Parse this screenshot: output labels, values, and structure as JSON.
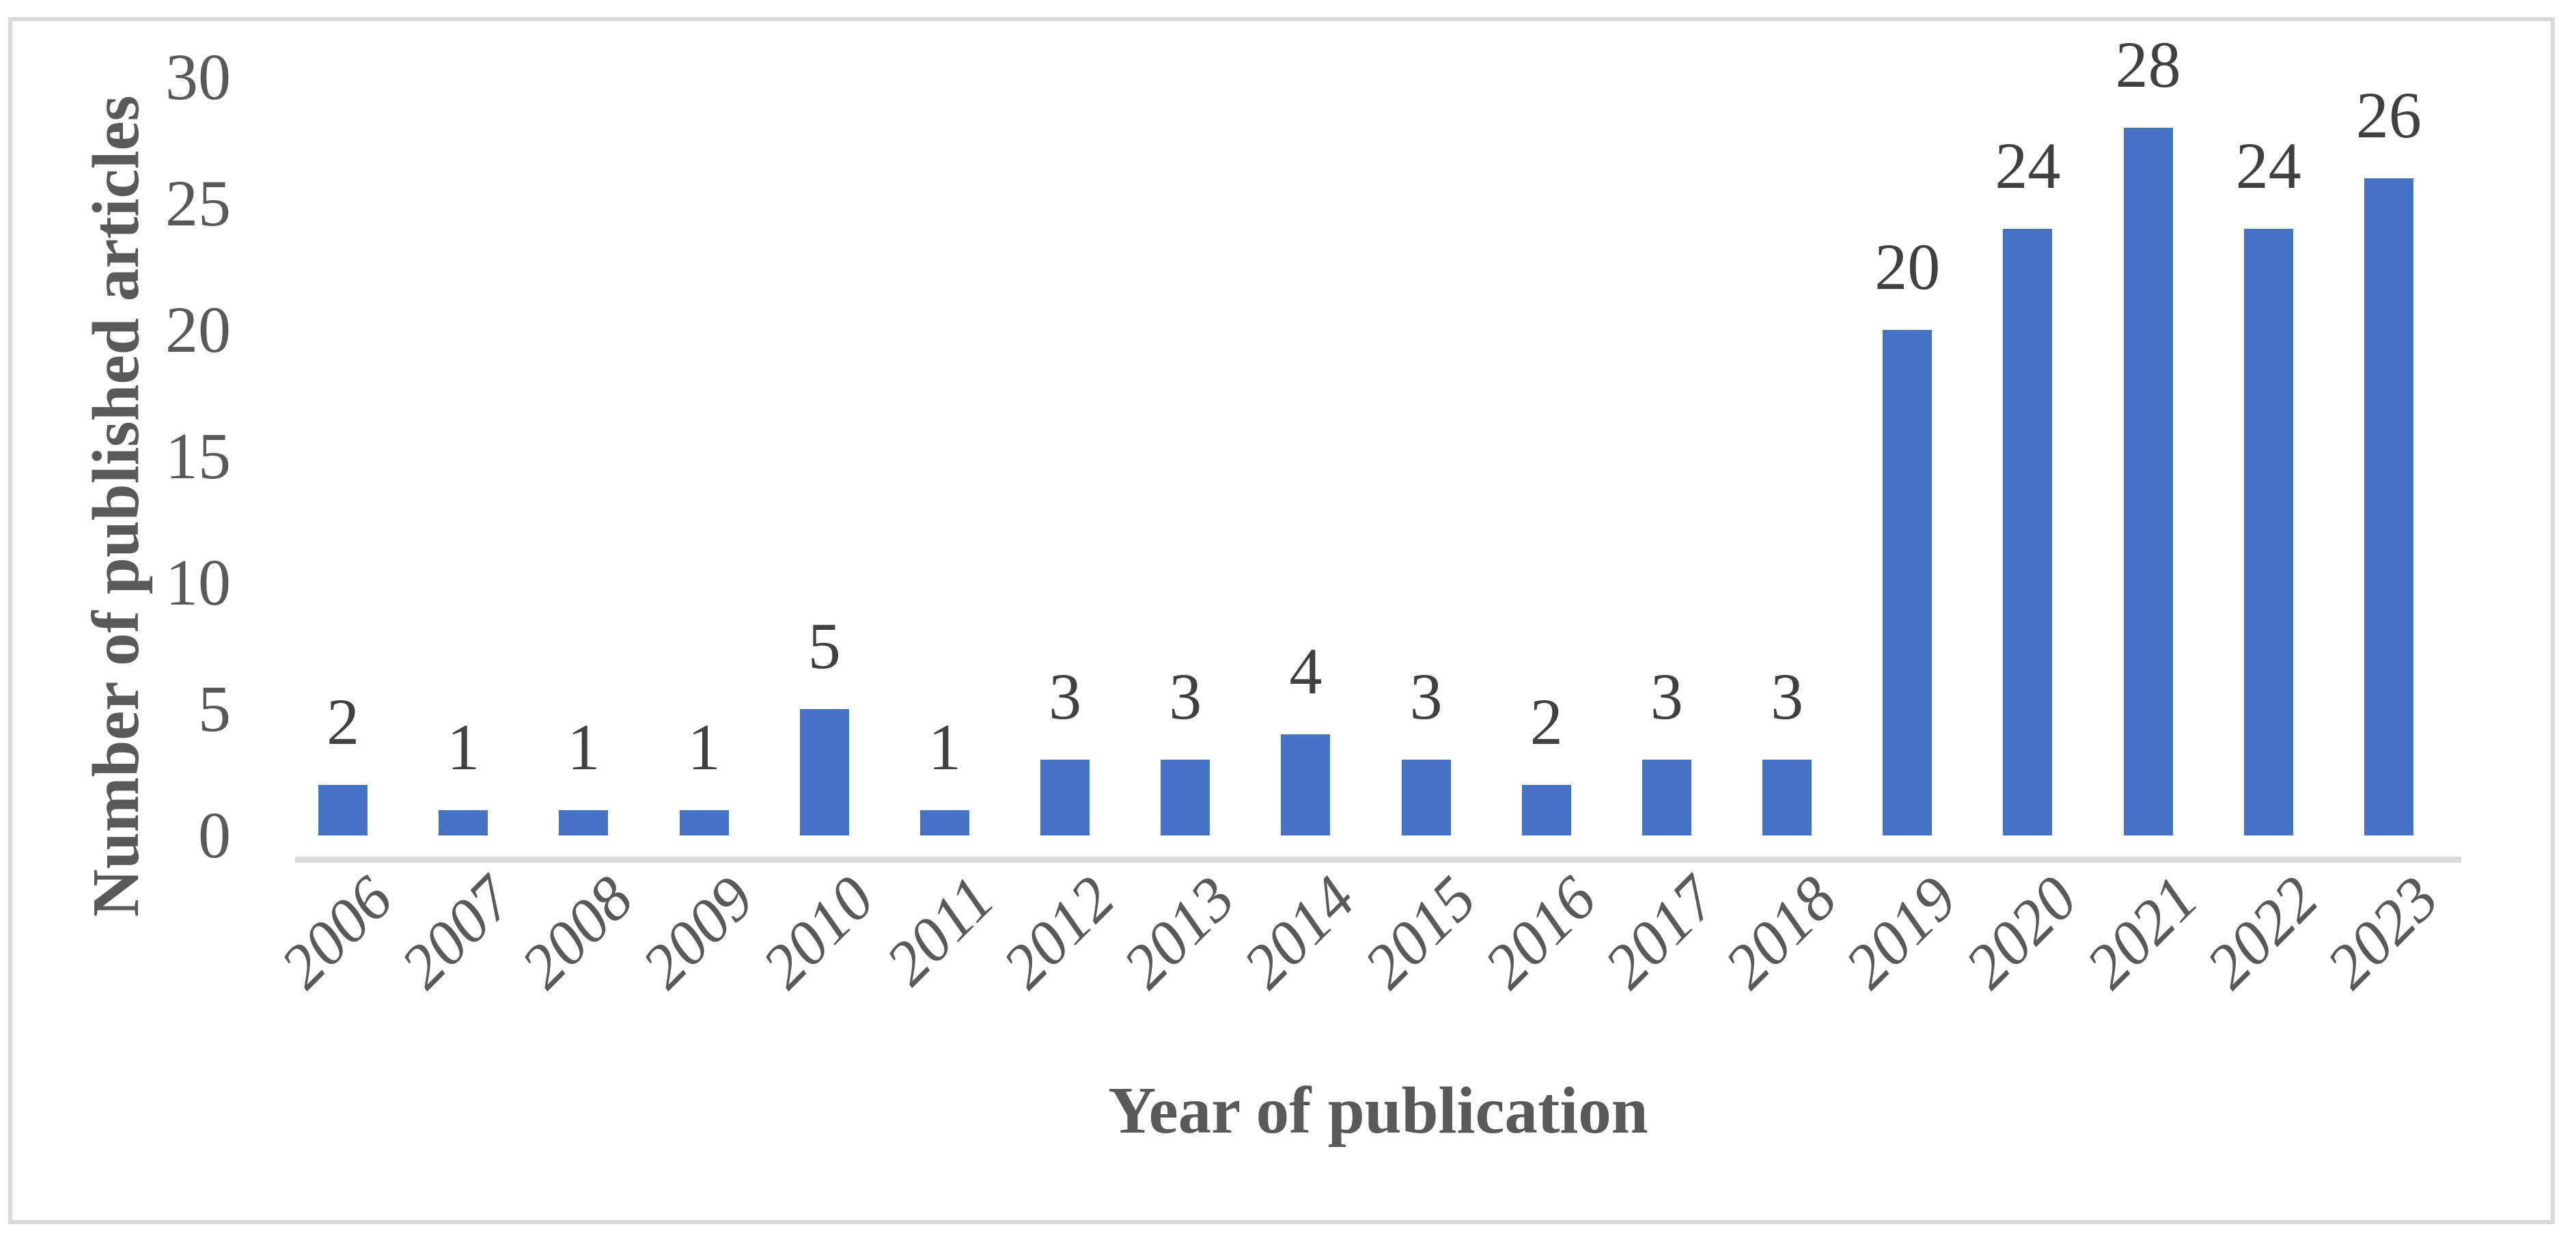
{
  "frame": {
    "border_color": "#d9d9d9",
    "background": "#ffffff"
  },
  "chart_data": {
    "type": "bar",
    "categories": [
      "2006",
      "2007",
      "2008",
      "2009",
      "2010",
      "2011",
      "2012",
      "2013",
      "2014",
      "2015",
      "2016",
      "2017",
      "2018",
      "2019",
      "2020",
      "2021",
      "2022",
      "2023"
    ],
    "values": [
      2,
      1,
      1,
      1,
      5,
      1,
      3,
      3,
      4,
      3,
      2,
      3,
      3,
      20,
      24,
      28,
      24,
      26
    ],
    "title": "",
    "xlabel": "Year of publication",
    "ylabel": "Number of published articles",
    "yticks": [
      0,
      5,
      10,
      15,
      20,
      25,
      30
    ],
    "ylim": [
      0,
      30
    ],
    "bar_color": "#4472C4",
    "axis_line_color": "#d9d9d9",
    "text_color": "#595959",
    "data_labels": true,
    "grid": false,
    "legend": false,
    "x_tick_rotation_deg": 45
  }
}
